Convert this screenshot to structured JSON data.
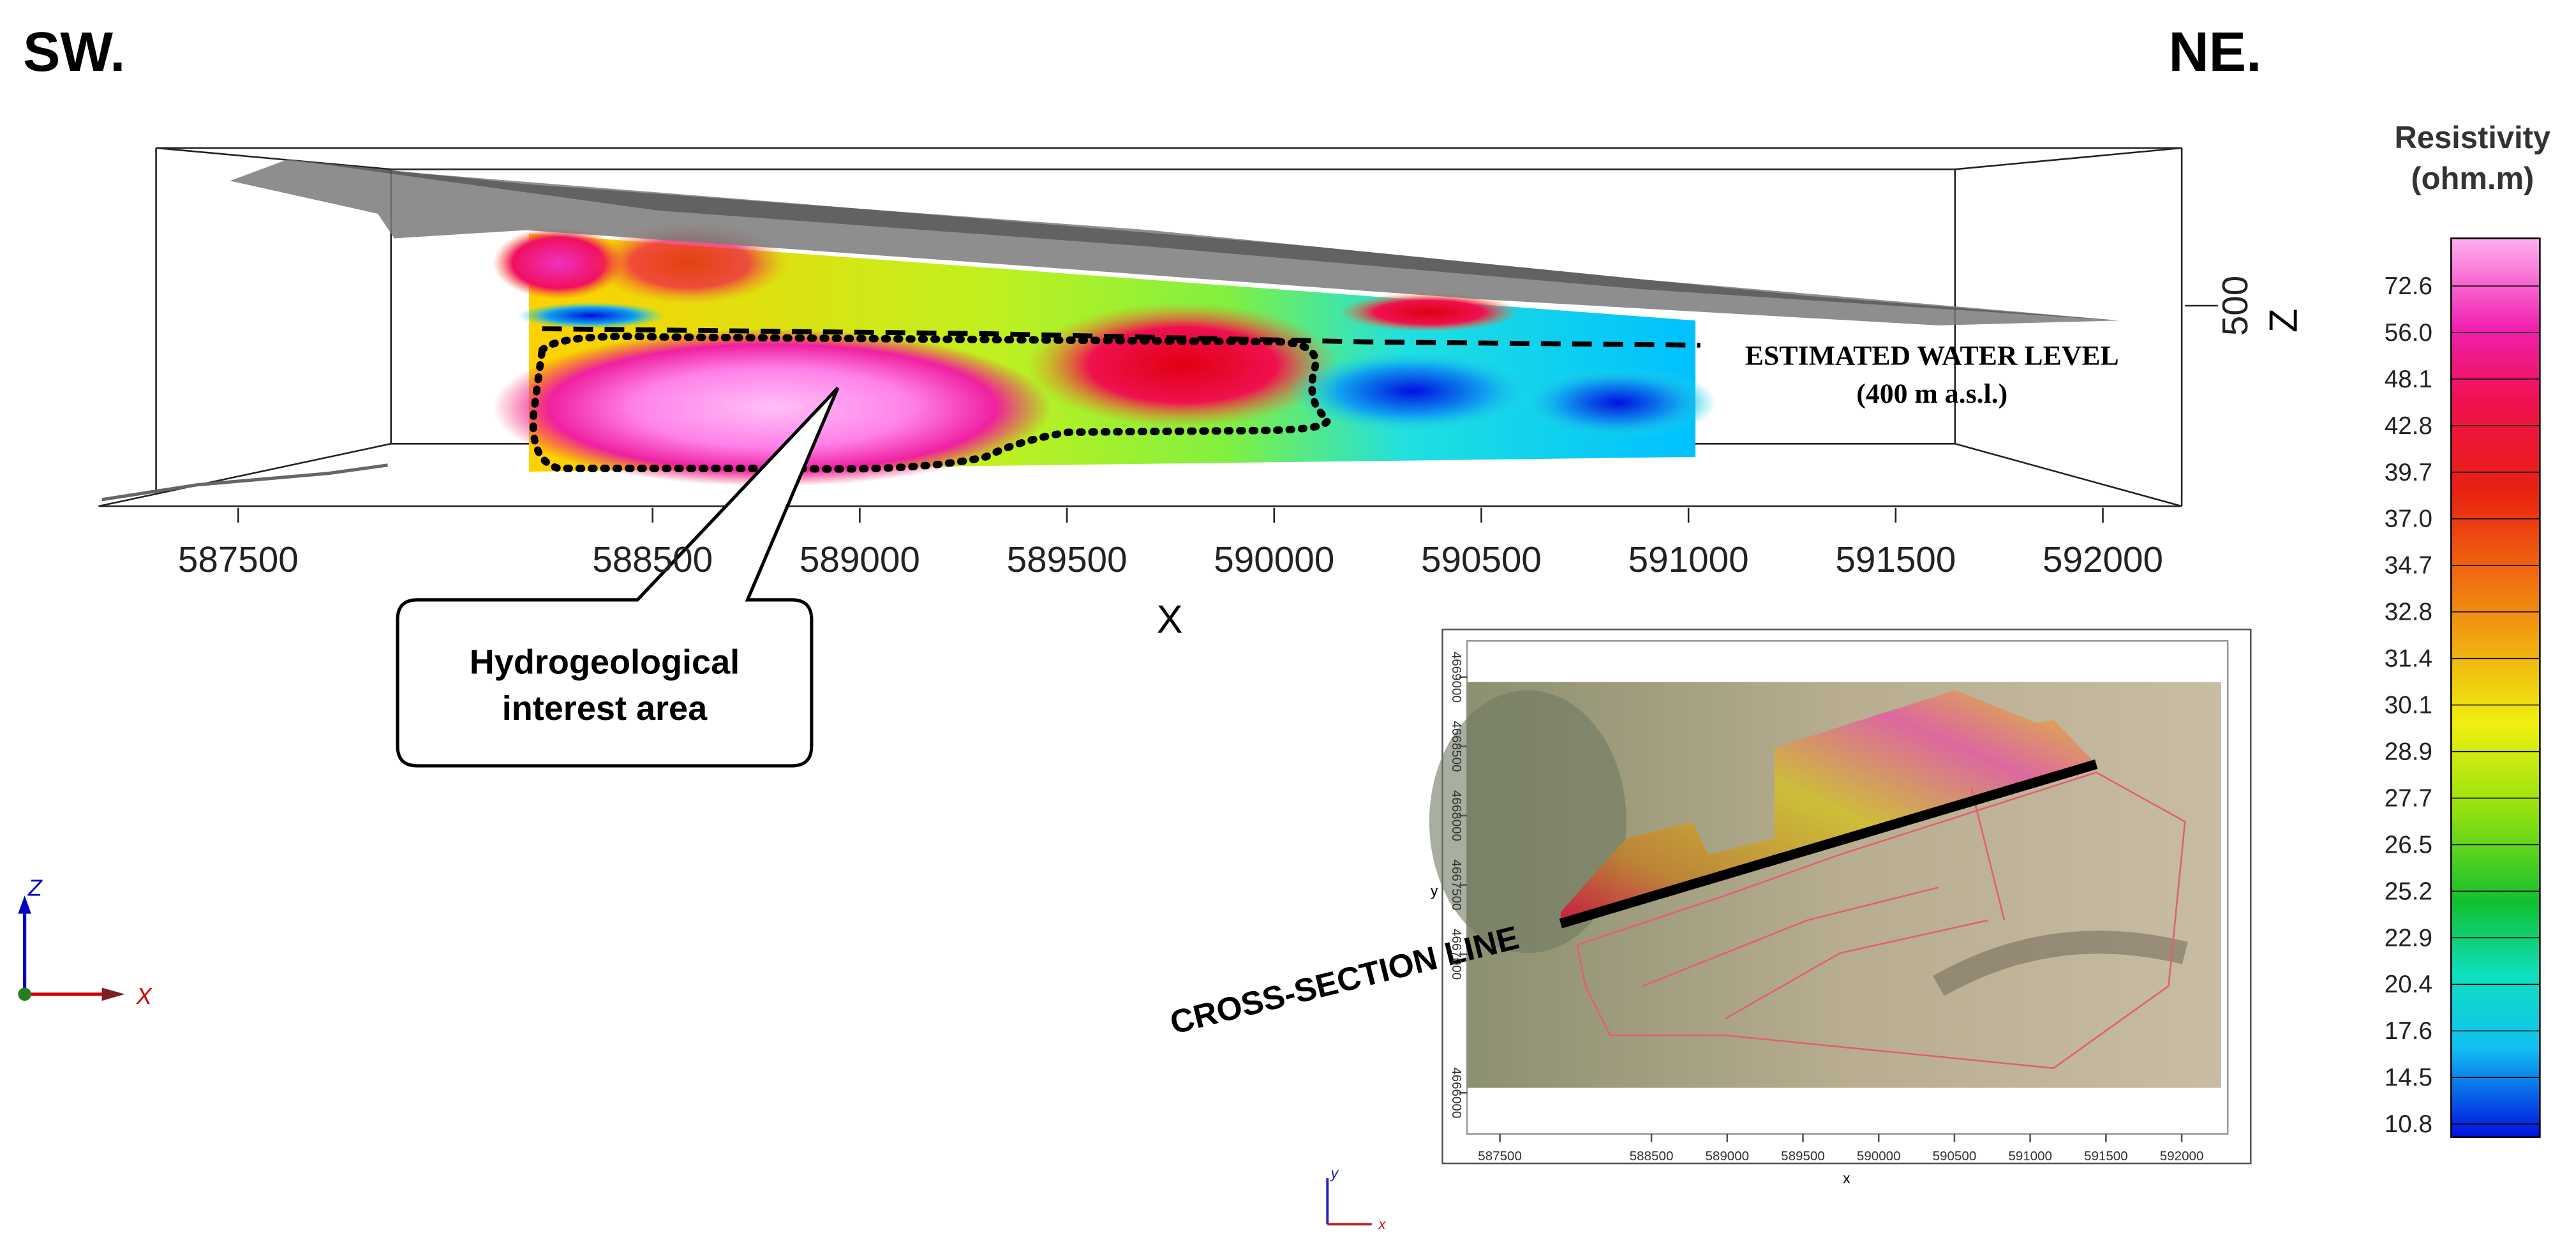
{
  "orientation": {
    "left": "SW.",
    "right": "NE."
  },
  "section": {
    "x_axis_label": "X",
    "z_axis_label": "Z",
    "x_ticks": [
      587500,
      588500,
      589000,
      589500,
      590000,
      590500,
      591000,
      591500,
      592000
    ],
    "z_ticks": [
      500
    ],
    "water_level": {
      "label": "ESTIMATED WATER LEVEL",
      "sublabel": "(400 m a.s.l.)"
    },
    "callout": [
      "Hydrogeological",
      "interest area"
    ]
  },
  "colorbar": {
    "title": "Resistivity",
    "unit": "(ohm.m)",
    "labels": [
      "72.6",
      "56.0",
      "48.1",
      "42.8",
      "39.7",
      "37.0",
      "34.7",
      "32.8",
      "31.4",
      "30.1",
      "28.9",
      "27.7",
      "26.5",
      "25.2",
      "22.9",
      "20.4",
      "17.6",
      "14.5",
      "10.8"
    ]
  },
  "axes_triad": {
    "z": "Z",
    "x": "X"
  },
  "inset": {
    "line_label": "CROSS-SECTION LINE",
    "x_axis_label": "x",
    "y_axis_label": "y",
    "x_ticks": [
      587500,
      588500,
      589000,
      589500,
      590000,
      590500,
      591000,
      591500,
      592000
    ],
    "y_ticks": [
      4669000,
      4668500,
      4668000,
      4667500,
      4667000,
      4666000
    ],
    "triad": {
      "y": "y",
      "x": "x"
    }
  }
}
